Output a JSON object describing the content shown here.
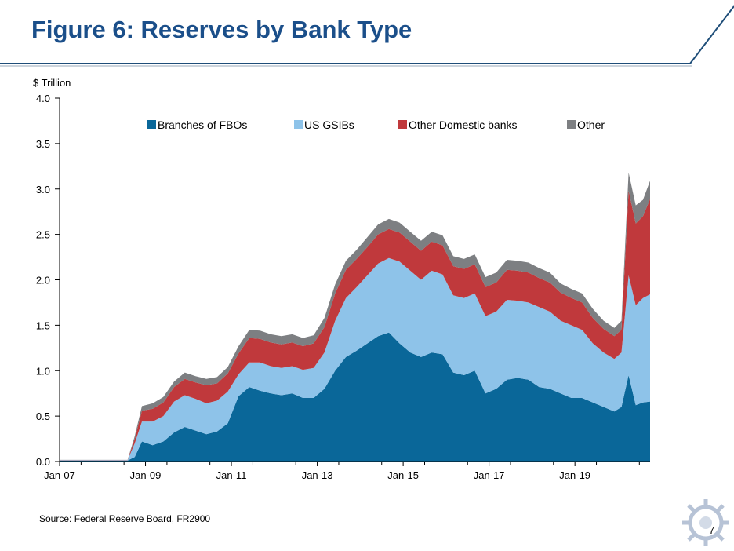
{
  "slide": {
    "title": "Figure 6: Reserves by Bank Type",
    "source": "Source: Federal Reserve Board, FR2900",
    "page_number": "7"
  },
  "colors": {
    "title": "#1b4f8a",
    "rule": "#1f4e79",
    "fbo": "#0a6799",
    "gsib": "#8ec3e9",
    "other_domestic": "#c0393c",
    "other": "#7d7f82"
  },
  "chart_data": {
    "type": "area",
    "stacked": true,
    "title": "",
    "xlabel": "",
    "ylabel": "$ Trillion",
    "ylim": [
      0,
      4.0
    ],
    "yticks": [
      "0.0",
      "0.5",
      "1.0",
      "1.5",
      "2.0",
      "2.5",
      "3.0",
      "3.5",
      "4.0"
    ],
    "xlim": [
      "2007-01",
      "2020-10"
    ],
    "xticks": [
      "Jan-07",
      "Jan-09",
      "Jan-11",
      "Jan-13",
      "Jan-15",
      "Jan-17",
      "Jan-19"
    ],
    "legend_position": "top",
    "grid": false,
    "x": [
      "2007-01",
      "2008-08",
      "2008-10",
      "2008-12",
      "2009-03",
      "2009-06",
      "2009-09",
      "2009-12",
      "2010-03",
      "2010-06",
      "2010-09",
      "2010-12",
      "2011-03",
      "2011-06",
      "2011-09",
      "2011-12",
      "2012-03",
      "2012-06",
      "2012-09",
      "2012-12",
      "2013-03",
      "2013-06",
      "2013-09",
      "2013-12",
      "2014-03",
      "2014-06",
      "2014-09",
      "2014-12",
      "2015-03",
      "2015-06",
      "2015-09",
      "2015-12",
      "2016-03",
      "2016-06",
      "2016-09",
      "2016-12",
      "2017-03",
      "2017-06",
      "2017-09",
      "2017-12",
      "2018-03",
      "2018-06",
      "2018-09",
      "2018-12",
      "2019-03",
      "2019-06",
      "2019-09",
      "2019-12",
      "2020-02",
      "2020-04",
      "2020-06",
      "2020-08",
      "2020-10"
    ],
    "series": [
      {
        "name": "Branches of FBOs",
        "values": [
          0.01,
          0.01,
          0.05,
          0.22,
          0.18,
          0.22,
          0.32,
          0.38,
          0.34,
          0.3,
          0.33,
          0.42,
          0.72,
          0.82,
          0.78,
          0.75,
          0.73,
          0.75,
          0.7,
          0.7,
          0.8,
          1.0,
          1.15,
          1.22,
          1.3,
          1.38,
          1.42,
          1.3,
          1.2,
          1.15,
          1.2,
          1.18,
          0.98,
          0.95,
          1.0,
          0.75,
          0.8,
          0.9,
          0.92,
          0.9,
          0.82,
          0.8,
          0.75,
          0.7,
          0.7,
          0.65,
          0.6,
          0.55,
          0.6,
          0.95,
          0.62,
          0.65,
          0.66
        ]
      },
      {
        "name": "US GSIBs",
        "values": [
          0.005,
          0.005,
          0.15,
          0.22,
          0.26,
          0.28,
          0.34,
          0.35,
          0.35,
          0.34,
          0.34,
          0.35,
          0.24,
          0.27,
          0.31,
          0.3,
          0.3,
          0.3,
          0.31,
          0.33,
          0.4,
          0.55,
          0.65,
          0.7,
          0.75,
          0.8,
          0.82,
          0.9,
          0.9,
          0.85,
          0.9,
          0.88,
          0.85,
          0.85,
          0.85,
          0.85,
          0.85,
          0.88,
          0.85,
          0.85,
          0.88,
          0.85,
          0.8,
          0.8,
          0.75,
          0.65,
          0.6,
          0.58,
          0.6,
          1.1,
          1.1,
          1.15,
          1.18
        ]
      },
      {
        "name": "Other Domestic banks",
        "values": [
          0.002,
          0.002,
          0.05,
          0.12,
          0.14,
          0.15,
          0.16,
          0.18,
          0.18,
          0.2,
          0.19,
          0.2,
          0.23,
          0.27,
          0.26,
          0.26,
          0.26,
          0.26,
          0.26,
          0.27,
          0.28,
          0.3,
          0.31,
          0.31,
          0.31,
          0.32,
          0.32,
          0.32,
          0.32,
          0.32,
          0.32,
          0.32,
          0.32,
          0.32,
          0.32,
          0.32,
          0.32,
          0.33,
          0.33,
          0.33,
          0.32,
          0.32,
          0.31,
          0.3,
          0.3,
          0.28,
          0.26,
          0.25,
          0.25,
          0.93,
          0.9,
          0.9,
          1.05
        ]
      },
      {
        "name": "Other",
        "values": [
          0.001,
          0.001,
          0.03,
          0.05,
          0.06,
          0.06,
          0.06,
          0.07,
          0.07,
          0.07,
          0.07,
          0.07,
          0.08,
          0.09,
          0.09,
          0.09,
          0.09,
          0.09,
          0.09,
          0.09,
          0.1,
          0.1,
          0.1,
          0.1,
          0.11,
          0.11,
          0.11,
          0.11,
          0.11,
          0.11,
          0.11,
          0.11,
          0.11,
          0.11,
          0.11,
          0.11,
          0.11,
          0.11,
          0.11,
          0.11,
          0.11,
          0.11,
          0.1,
          0.1,
          0.1,
          0.1,
          0.09,
          0.09,
          0.1,
          0.2,
          0.2,
          0.18,
          0.2
        ]
      }
    ]
  }
}
